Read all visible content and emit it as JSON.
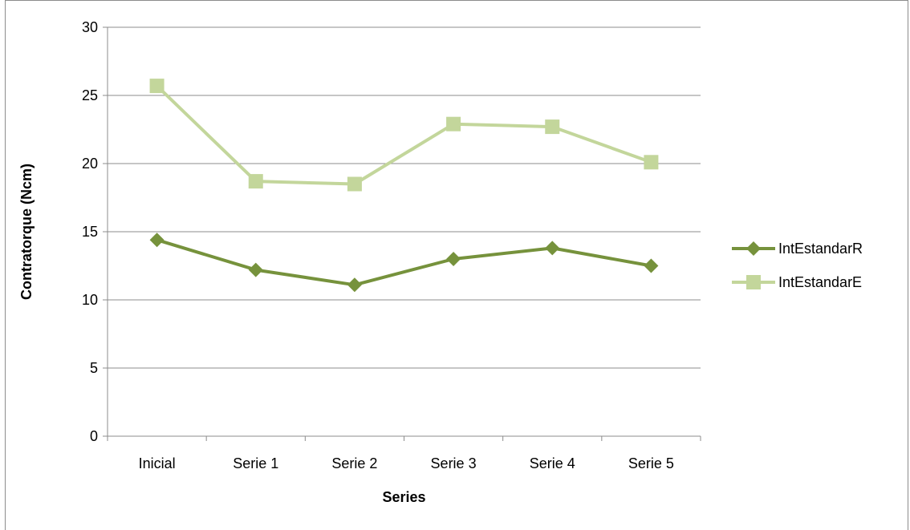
{
  "chart_data": {
    "type": "line",
    "categories": [
      "Inicial",
      "Serie 1",
      "Serie 2",
      "Serie 3",
      "Serie 4",
      "Serie 5"
    ],
    "series": [
      {
        "name": "IntEstandarR",
        "values": [
          14.4,
          12.2,
          11.1,
          13.0,
          13.8,
          12.5
        ],
        "color": "#76923c",
        "marker": "diamond"
      },
      {
        "name": "IntEstandarE",
        "values": [
          25.7,
          18.7,
          18.5,
          22.9,
          22.7,
          20.1
        ],
        "color": "#c3d69b",
        "marker": "square"
      }
    ],
    "xlabel": "Series",
    "ylabel": "Contratorque (Ncm)",
    "ylim": [
      0,
      30
    ],
    "yticks": [
      0,
      5,
      10,
      15,
      20,
      25,
      30
    ],
    "grid": true,
    "legend_position": "right"
  }
}
